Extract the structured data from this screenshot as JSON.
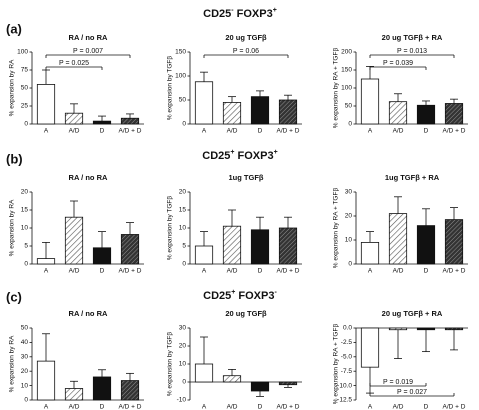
{
  "rows": [
    {
      "panel": "(a)",
      "marker1": "CD25",
      "marker1_sign": "-",
      "marker2": "FOXP3",
      "marker2_sign": "+"
    },
    {
      "panel": "(b)",
      "marker1": "CD25",
      "marker1_sign": "+",
      "marker2": "FOXP3",
      "marker2_sign": "+"
    },
    {
      "panel": "(c)",
      "marker1": "CD25",
      "marker1_sign": "+",
      "marker2": "FOXP3",
      "marker2_sign": "-"
    }
  ],
  "chart_data": [
    {
      "type": "bar",
      "title": "RA / no RA",
      "ylabel": "% expansion by RA",
      "categories": [
        "A",
        "A/D",
        "D",
        "A/D + D"
      ],
      "values": [
        55,
        15,
        4,
        8
      ],
      "errors": [
        20,
        13,
        7,
        6
      ],
      "bar_styles": [
        "open",
        "hatched",
        "solid",
        "dense-hatched"
      ],
      "ylim": [
        0,
        100
      ],
      "yticks": [
        0,
        25,
        50,
        75,
        100
      ],
      "annotations": [
        {
          "text": "P = 0.007",
          "from": "A",
          "to": "A/D + D"
        },
        {
          "text": "P = 0.025",
          "from": "A",
          "to": "D"
        }
      ]
    },
    {
      "type": "bar",
      "title": "20 ug TGFβ",
      "ylabel": "% expansion by TGFβ",
      "categories": [
        "A",
        "A/D",
        "D",
        "A/D + D"
      ],
      "values": [
        88,
        45,
        57,
        50
      ],
      "errors": [
        20,
        12,
        12,
        10
      ],
      "bar_styles": [
        "open",
        "hatched",
        "solid",
        "dense-hatched"
      ],
      "ylim": [
        0,
        150
      ],
      "yticks": [
        0,
        50,
        100,
        150
      ],
      "annotations": [
        {
          "text": "P = 0.06",
          "from": "A",
          "to": "A/D + D"
        }
      ]
    },
    {
      "type": "bar",
      "title": "20 ug TGFβ + RA",
      "ylabel": "% expansion by RA + TGFβ",
      "categories": [
        "A",
        "A/D",
        "D",
        "A/D + D"
      ],
      "values": [
        125,
        62,
        52,
        57
      ],
      "errors": [
        35,
        22,
        12,
        12
      ],
      "bar_styles": [
        "open",
        "hatched",
        "solid",
        "dense-hatched"
      ],
      "ylim": [
        0,
        200
      ],
      "yticks": [
        0,
        50,
        100,
        150,
        200
      ],
      "annotations": [
        {
          "text": "P = 0.013",
          "from": "A",
          "to": "A/D + D"
        },
        {
          "text": "P = 0.039",
          "from": "A",
          "to": "D"
        }
      ]
    },
    {
      "type": "bar",
      "title": "RA / no RA",
      "ylabel": "% expansion by RA",
      "categories": [
        "A",
        "A/D",
        "D",
        "A/D + D"
      ],
      "values": [
        1.5,
        13,
        4.5,
        8.2
      ],
      "errors": [
        4.5,
        4.5,
        4.5,
        3.3
      ],
      "bar_styles": [
        "open",
        "hatched",
        "solid",
        "dense-hatched"
      ],
      "ylim": [
        0,
        20
      ],
      "yticks": [
        0,
        5,
        10,
        15,
        20
      ]
    },
    {
      "type": "bar",
      "title": "1ug TGFβ",
      "ylabel": "% expansion by TGFβ",
      "categories": [
        "A",
        "A/D",
        "D",
        "A/D + D"
      ],
      "values": [
        5,
        10.5,
        9.5,
        10
      ],
      "errors": [
        4,
        4.5,
        3.5,
        3
      ],
      "bar_styles": [
        "open",
        "hatched",
        "solid",
        "dense-hatched"
      ],
      "ylim": [
        0,
        20
      ],
      "yticks": [
        0,
        5,
        10,
        15,
        20
      ]
    },
    {
      "type": "bar",
      "title": "1ug TGFβ + RA",
      "ylabel": "% expansion by RA + TGFβ",
      "categories": [
        "A",
        "A/D",
        "D",
        "A/D + D"
      ],
      "values": [
        9,
        21,
        16,
        18.5
      ],
      "errors": [
        4.5,
        7,
        7,
        5
      ],
      "bar_styles": [
        "open",
        "hatched",
        "solid",
        "dense-hatched"
      ],
      "ylim": [
        0,
        30
      ],
      "yticks": [
        0,
        10,
        20,
        30
      ]
    },
    {
      "type": "bar",
      "title": "RA / no RA",
      "ylabel": "% expansion by RA",
      "categories": [
        "A",
        "A/D",
        "D",
        "A/D + D"
      ],
      "values": [
        27,
        8,
        16,
        13.5
      ],
      "errors": [
        19,
        5,
        5,
        5
      ],
      "bar_styles": [
        "open",
        "hatched",
        "solid",
        "dense-hatched"
      ],
      "ylim": [
        0,
        50
      ],
      "yticks": [
        0,
        10,
        20,
        30,
        40,
        50
      ]
    },
    {
      "type": "bar",
      "title": "20 ug TGFβ",
      "ylabel": "% expansion by TGFβ",
      "categories": [
        "A",
        "A/D",
        "D",
        "A/D + D"
      ],
      "values": [
        10,
        3.5,
        -5,
        -1.5
      ],
      "errors": [
        15,
        3.5,
        3,
        1.5
      ],
      "bar_styles": [
        "open",
        "hatched",
        "solid",
        "dense-hatched"
      ],
      "ylim": [
        -10,
        30
      ],
      "yticks": [
        -10,
        0,
        10,
        20,
        30
      ]
    },
    {
      "type": "bar",
      "title": "20 ug TGFβ + RA",
      "ylabel": "% expansion by RA + TGFβ",
      "categories": [
        "A",
        "A/D",
        "D",
        "A/D + D"
      ],
      "values": [
        -6.8,
        -0.3,
        -0.3,
        -0.3
      ],
      "errors": [
        4.5,
        5,
        3.8,
        3.5
      ],
      "bar_styles": [
        "open",
        "hatched",
        "solid",
        "dense-hatched"
      ],
      "ylim": [
        -12.5,
        0
      ],
      "yticks": [
        {
          "value": 0,
          "label": "0.0"
        },
        -2.5,
        {
          "value": -5,
          "label": "-5.0"
        },
        {
          "value": -7.5,
          "label": "-7.5"
        },
        {
          "value": -10,
          "label": "-10.0"
        },
        {
          "value": -12.5,
          "label": "-12.5"
        }
      ],
      "annotations": [
        {
          "text": "P = 0.019",
          "from": "A",
          "to": "D"
        },
        {
          "text": "P = 0.027",
          "from": "A",
          "to": "A/D + D"
        }
      ]
    }
  ]
}
